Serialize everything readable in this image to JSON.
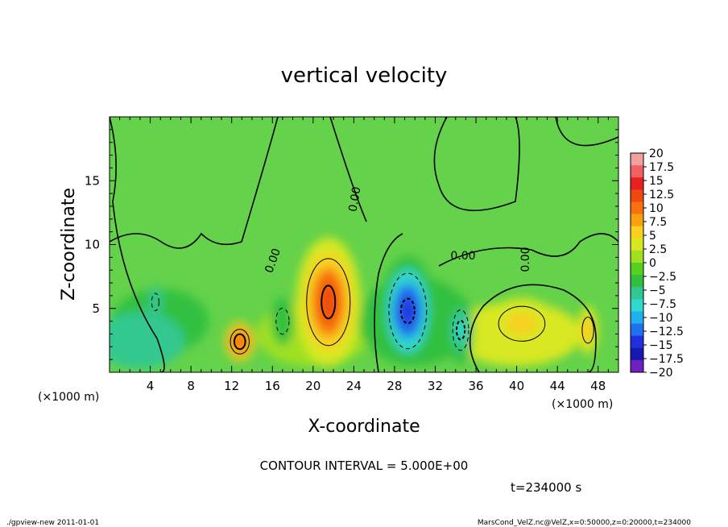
{
  "chart_data": {
    "type": "heatmap",
    "title": "vertical velocity",
    "xlabel": "X-coordinate",
    "ylabel": "Z-coordinate",
    "x_unit_label": "(×1000 m)",
    "y_unit_label": "(×1000 m)",
    "xlim": [
      0,
      50
    ],
    "ylim": [
      0,
      20
    ],
    "x_ticks": [
      4,
      8,
      12,
      16,
      20,
      24,
      28,
      32,
      36,
      40,
      44,
      48
    ],
    "y_ticks": [
      5,
      10,
      15
    ],
    "colorbar": {
      "levels": [
        20,
        17.5,
        15,
        12.5,
        10,
        7.5,
        5,
        2.5,
        0,
        -2.5,
        -5,
        -7.5,
        -10,
        -12.5,
        -15,
        -17.5,
        -20
      ],
      "labels": [
        "20",
        "17.5",
        "15",
        "12.5",
        "10",
        "7.5",
        "5",
        "2.5",
        "0",
        "−2.5",
        "−5",
        "−7.5",
        "−10",
        "−12.5",
        "−15",
        "−17.5",
        "−20"
      ],
      "colors": [
        "#f2a0a0",
        "#f26060",
        "#e82020",
        "#f04810",
        "#f87010",
        "#f8a010",
        "#f8d020",
        "#d8e820",
        "#a0e020",
        "#58d020",
        "#30c040",
        "#30c890",
        "#30d8d0",
        "#20b0f0",
        "#2070f0",
        "#2030e0",
        "#1818b0",
        "#7020c0"
      ]
    },
    "contour_label": "0.00",
    "features": [
      {
        "x": 21.5,
        "z": 5.5,
        "value": 14
      },
      {
        "x": 12.8,
        "z": 2.4,
        "value": 12
      },
      {
        "x": 29.3,
        "z": 4.8,
        "value": -17
      },
      {
        "x": 34.5,
        "z": 3.3,
        "value": -10
      },
      {
        "x": 40.5,
        "z": 3.8,
        "value": 6
      },
      {
        "x": 47.0,
        "z": 3.3,
        "value": 6
      },
      {
        "x": 4.5,
        "z": 5.5,
        "value": -7
      },
      {
        "x": 17.0,
        "z": 4.0,
        "value": -5
      }
    ],
    "contour_interval_text": "CONTOUR INTERVAL = 5.000E+00",
    "time_text": "t=234000 s"
  },
  "footer": {
    "left": "./gpview-new  2011-01-01",
    "right": "MarsCond_VelZ.nc@VelZ,x=0:50000,z=0:20000,t=234000"
  }
}
